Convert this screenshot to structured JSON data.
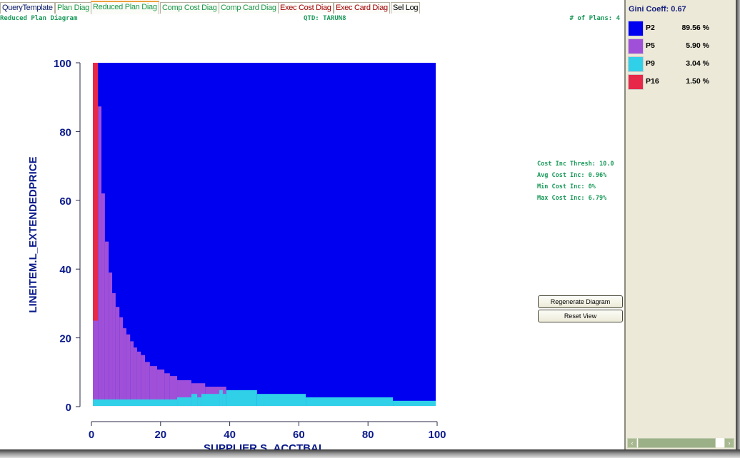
{
  "tabs": [
    {
      "label": "QueryTemplate",
      "color": "#0a1a6a"
    },
    {
      "label": "Plan Diag",
      "color": "#1a9a4a"
    },
    {
      "label": "Reduced Plan Diag",
      "color": "#1a9a4a",
      "selected": true
    },
    {
      "label": "Comp Cost Diag",
      "color": "#1a9a4a"
    },
    {
      "label": "Comp Card Diag",
      "color": "#1a9a4a"
    },
    {
      "label": "Exec Cost Diag",
      "color": "#a00000"
    },
    {
      "label": "Exec Card Diag",
      "color": "#a00000"
    },
    {
      "label": "Sel Log",
      "color": "#000000"
    }
  ],
  "header": {
    "diagram_title": "Reduced Plan Diagram",
    "qtd": "QTD: TARUN8",
    "num_plans": "# of Plans: 4"
  },
  "stats": {
    "thresh": "Cost Inc Thresh: 10.0",
    "avg": "Avg Cost Inc: 0.96%",
    "min": "Min Cost Inc: 0%",
    "max": "Max Cost Inc: 6.79%"
  },
  "buttons": {
    "regenerate": "Regenerate Diagram",
    "reset": "Reset View"
  },
  "legend": {
    "gini": "Gini Coeff: 0.67",
    "items": [
      {
        "plan": "P2",
        "pct": "89.56 %",
        "color": "#0000f0"
      },
      {
        "plan": "P5",
        "pct": "5.90 %",
        "color": "#a050d8"
      },
      {
        "plan": "P9",
        "pct": "3.04 %",
        "color": "#30d0e8"
      },
      {
        "plan": "P16",
        "pct": "1.50 %",
        "color": "#e82848"
      }
    ]
  },
  "chart_data": {
    "type": "heatmap",
    "xlabel": "SUPPLIER.S_ACCTBAL",
    "ylabel": "LINEITEM.L_EXTENDEDPRICE",
    "xlim": [
      0,
      100
    ],
    "ylim": [
      0,
      100
    ],
    "xticks": [
      0,
      20,
      40,
      60,
      80,
      100
    ],
    "yticks": [
      0,
      20,
      40,
      60,
      80,
      100
    ],
    "background_plan": "P2",
    "P5_top_steps": [
      [
        0,
        1.9,
        25
      ],
      [
        1.9,
        2.9,
        87.3
      ],
      [
        2.9,
        3.9,
        62
      ],
      [
        3.9,
        5.0,
        48
      ],
      [
        5.0,
        6.0,
        39
      ],
      [
        6.0,
        7.0,
        33
      ],
      [
        7.0,
        8.1,
        29
      ],
      [
        8.1,
        9.1,
        26
      ],
      [
        9.1,
        10.1,
        22.8
      ],
      [
        10.1,
        11.2,
        21
      ],
      [
        11.2,
        12.2,
        19
      ],
      [
        12.2,
        13.2,
        17.2
      ],
      [
        13.2,
        14.3,
        16
      ],
      [
        14.3,
        15.5,
        15
      ],
      [
        15.5,
        16.9,
        13
      ],
      [
        16.9,
        19.0,
        11.8
      ],
      [
        19.0,
        21.1,
        10.8
      ],
      [
        21.1,
        22.7,
        9.7
      ],
      [
        22.7,
        24.8,
        8.9
      ],
      [
        24.8,
        28.9,
        7.7
      ],
      [
        28.9,
        32.9,
        6.8
      ],
      [
        32.9,
        39.0,
        5.8
      ]
    ],
    "P9_top_steps": [
      [
        0,
        24.8,
        2.1
      ],
      [
        24.8,
        28.9,
        2.7
      ],
      [
        28.9,
        30.6,
        3.7
      ],
      [
        30.6,
        31.8,
        2.7
      ],
      [
        31.8,
        37,
        3.7
      ],
      [
        37,
        38,
        4.8
      ],
      [
        38,
        39,
        3.7
      ],
      [
        39,
        47.9,
        4.8
      ],
      [
        47.9,
        62,
        3.7
      ],
      [
        62,
        87.2,
        2.7
      ],
      [
        87.2,
        100,
        1.7
      ]
    ],
    "P16_region": [
      0,
      1.9,
      25,
      100
    ]
  }
}
